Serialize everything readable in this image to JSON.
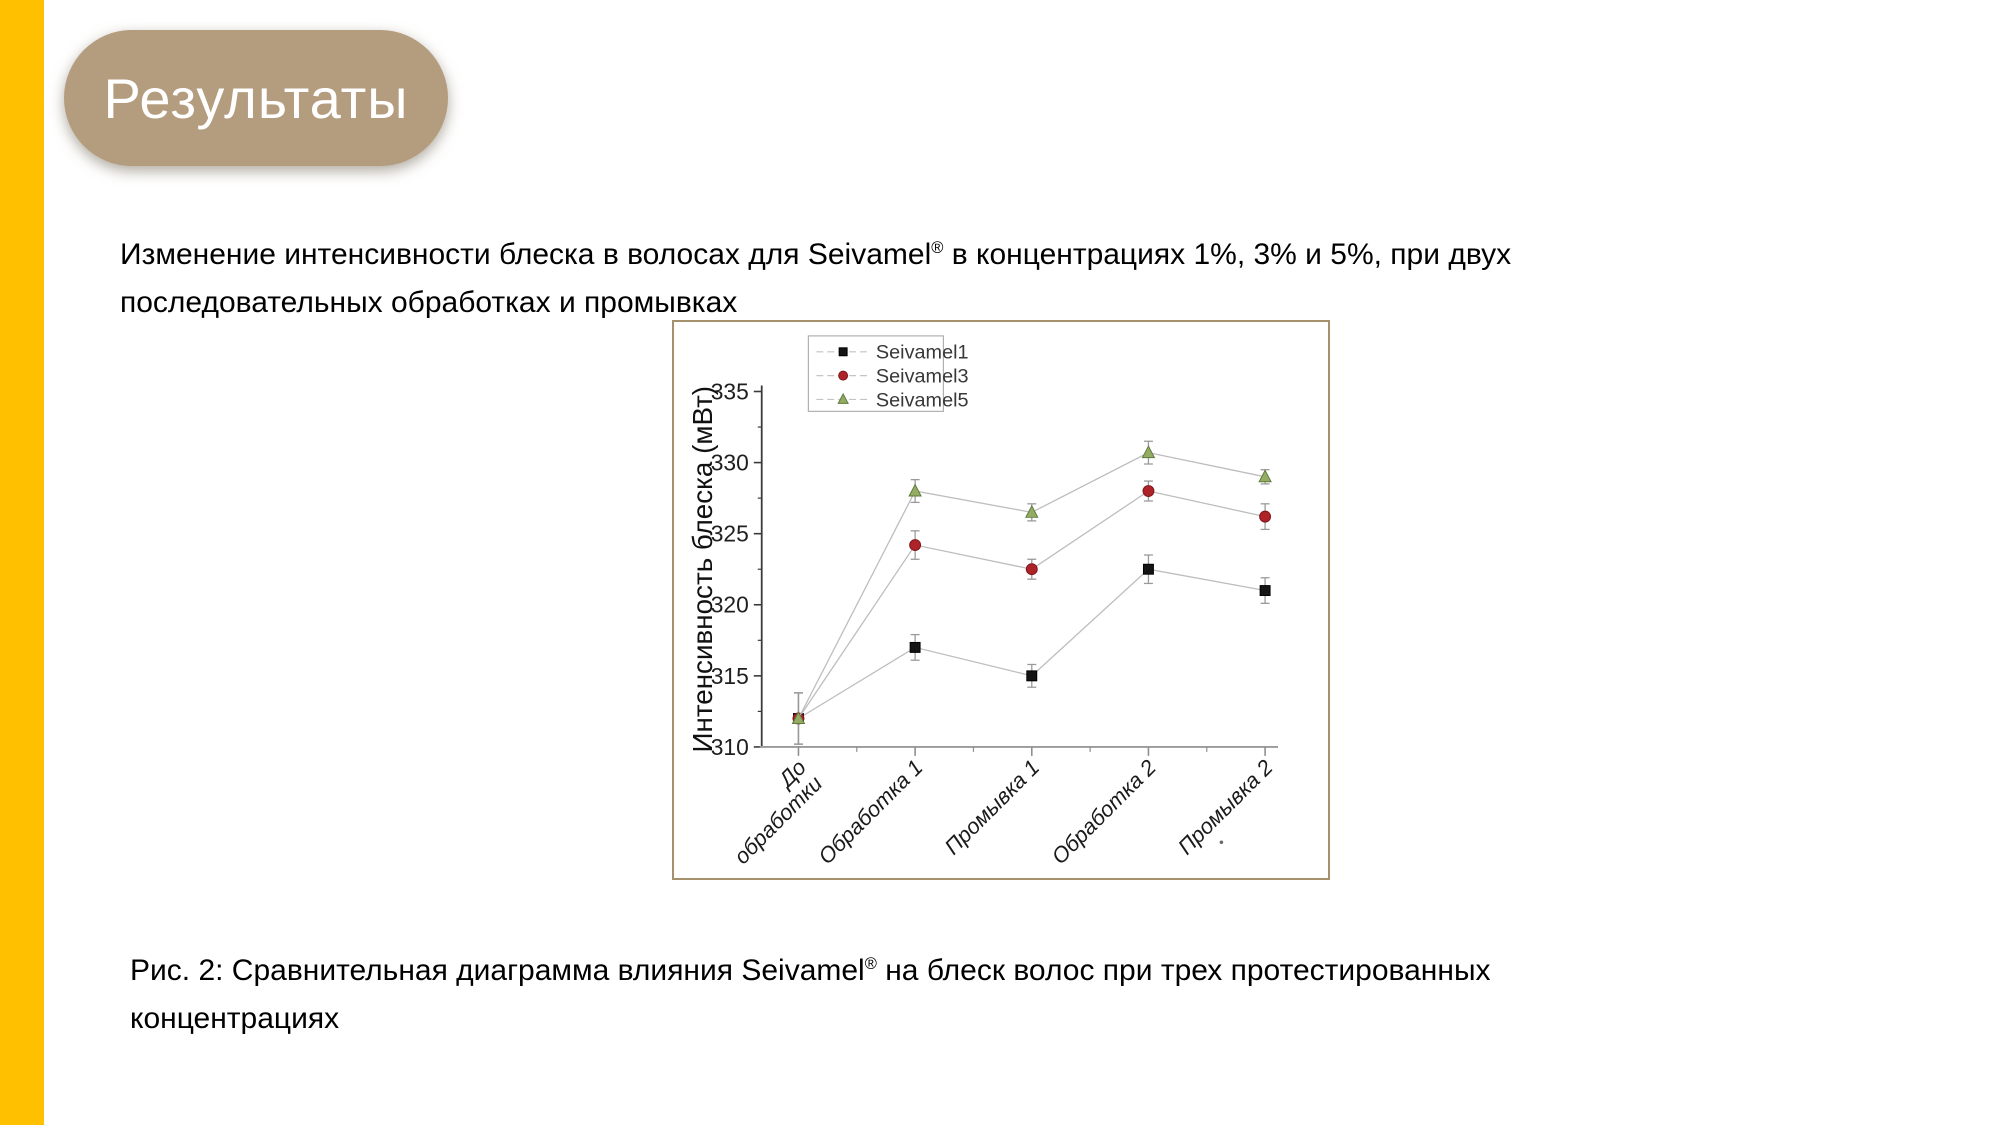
{
  "slide": {
    "accent_color": "#FFC000",
    "badge_color": "#b49c7e",
    "frame_border_color": "#a5916b"
  },
  "header": {
    "title": "Результаты"
  },
  "intro": {
    "prefix": "Изменение интенсивности блеска в волосах для Seivamel",
    "registered": "®",
    "line1_rest": "  в концентрациях 1%, 3% и 5%, при двух",
    "line2": "последовательных обработках и промывках"
  },
  "caption": {
    "prefix": "Рис. 2: Сравнительная диаграмма влияния Seivamel",
    "registered": "®",
    "line1_rest": " на блеск волос при трех протестированных",
    "line2": "концентрациях"
  },
  "chart_data": {
    "type": "line",
    "title": "",
    "xlabel": "",
    "ylabel": "Интенсивность блеска (мВт)",
    "ylim": [
      310,
      335
    ],
    "yticks": [
      310,
      315,
      320,
      325,
      330,
      335
    ],
    "y_minor_step": 2.5,
    "grid": false,
    "legend_position": "top-left",
    "line_color": "#bdbdbd",
    "error_color": "#9a9a9a",
    "categories": [
      "До обработки",
      "Обработка 1",
      "Промывка 1",
      "Обработка 2",
      "Промывка 2"
    ],
    "category_label_lines": [
      [
        "До",
        "обработки"
      ],
      [
        "Обработка 1"
      ],
      [
        "Промывка 1"
      ],
      [
        "Обработка 2"
      ],
      [
        "Промывка 2"
      ]
    ],
    "series": [
      {
        "name": "Seivamel1",
        "marker": "square",
        "color": "#141414",
        "edge": "#000000",
        "values": [
          312,
          317,
          315,
          322.5,
          321
        ],
        "errors": [
          1.8,
          0.9,
          0.8,
          1.0,
          0.9
        ]
      },
      {
        "name": "Seivamel3",
        "marker": "circle",
        "color": "#ae2328",
        "edge": "#7d181c",
        "values": [
          312,
          324.2,
          322.5,
          328,
          326.2
        ],
        "errors": [
          1.8,
          1.0,
          0.7,
          0.7,
          0.9
        ]
      },
      {
        "name": "Seivamel5",
        "marker": "triangle",
        "color": "#93ac62",
        "edge": "#5f7a3e",
        "values": [
          312,
          328,
          326.5,
          330.7,
          329
        ],
        "errors": [
          1.8,
          0.8,
          0.6,
          0.8,
          0.5
        ]
      }
    ]
  }
}
